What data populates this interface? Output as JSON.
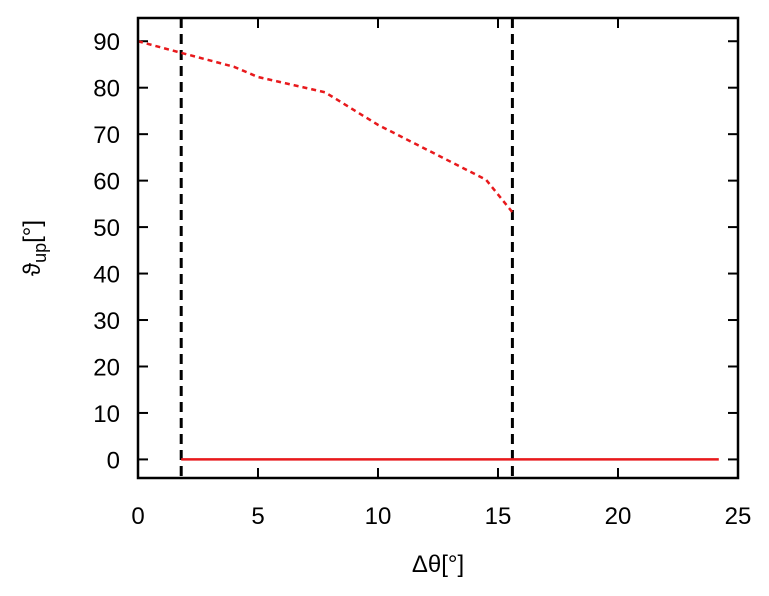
{
  "chart_data": {
    "type": "line",
    "xlabel": "Δθ[°]",
    "ylabel": {
      "symbol": "ϑ",
      "subscript": "up",
      "unit": "[°]"
    },
    "series": [
      {
        "color": "#e8191c",
        "linestyle": "dashed",
        "x": [
          0,
          1.8,
          4,
          5,
          7.8,
          10,
          14.5,
          15.6
        ],
        "values": [
          90,
          87.5,
          84.5,
          82.3,
          79,
          72,
          60.2,
          53.2
        ]
      },
      {
        "color": "#e8191c",
        "linestyle": "solid",
        "x": [
          1.8,
          24.2
        ],
        "values": [
          0,
          0
        ]
      }
    ],
    "vlines": {
      "color": "#000000",
      "linestyle": "dashed",
      "x": [
        1.8,
        15.6
      ]
    },
    "xlim": [
      0,
      25
    ],
    "xticks": [
      0,
      5,
      10,
      15,
      20,
      25
    ],
    "ylim": [
      -4,
      95
    ],
    "yticks": [
      0,
      10,
      20,
      30,
      40,
      50,
      60,
      70,
      80,
      90
    ],
    "grid": false
  }
}
